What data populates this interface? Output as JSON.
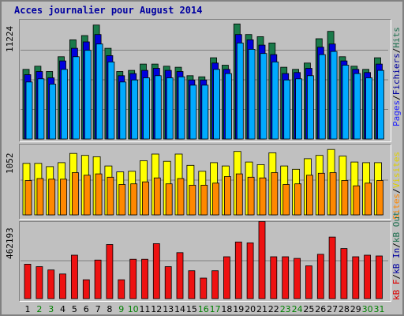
{
  "title": "Acces journalier pour August 2014",
  "colors": {
    "pages": "#00aaff",
    "fichiers": "#0000dd",
    "hits": "#1a7a4a",
    "visites": "#ffff00",
    "sites": "#ff8800",
    "kb": "#ee1111",
    "weekend_label": "#008000",
    "label_blue": "#2020ff",
    "label_dark_blue": "#0000a0",
    "label_green": "#207050",
    "label_yellow": "#e0d000",
    "label_orange": "#ff8800",
    "label_red": "#dd0000"
  },
  "legends": {
    "hits_panel": [
      "Pages",
      "/",
      "Fichiers",
      "/",
      "Hits"
    ],
    "volume_panel": [
      "Sites",
      "/",
      "Visites"
    ],
    "bandwidth_panel": [
      "kB F",
      "/",
      "kB In",
      "/",
      "kB Out"
    ]
  },
  "chart_data": [
    {
      "type": "bar",
      "name": "hits-panel",
      "max_label": "11224",
      "ylim": [
        0,
        11224
      ],
      "categories": [
        "1",
        "2",
        "3",
        "4",
        "5",
        "6",
        "7",
        "8",
        "9",
        "10",
        "11",
        "12",
        "13",
        "14",
        "15",
        "16",
        "17",
        "18",
        "19",
        "20",
        "21",
        "22",
        "23",
        "24",
        "25",
        "26",
        "27",
        "28",
        "29",
        "30",
        "31"
      ],
      "series": [
        {
          "name": "Hits",
          "values": [
            6600,
            6900,
            6400,
            7800,
            9400,
            9800,
            10800,
            8600,
            6400,
            6500,
            7100,
            7100,
            6900,
            6800,
            6000,
            5900,
            7700,
            7000,
            10900,
            9900,
            9700,
            9100,
            6800,
            6600,
            7200,
            9500,
            10200,
            7800,
            6900,
            6600,
            7700
          ]
        },
        {
          "name": "Fichiers",
          "values": [
            6100,
            6400,
            5800,
            7400,
            8600,
            9200,
            9900,
            7900,
            6000,
            6200,
            6500,
            6700,
            6500,
            6400,
            5600,
            5600,
            7200,
            6600,
            9900,
            9400,
            8900,
            8000,
            6200,
            6300,
            6700,
            8700,
            9000,
            7400,
            6600,
            6300,
            7100
          ]
        },
        {
          "name": "Pages",
          "values": [
            5400,
            5700,
            5200,
            6600,
            7800,
            8400,
            9000,
            7300,
            5400,
            5600,
            5800,
            6000,
            5800,
            5900,
            5100,
            5100,
            6600,
            6200,
            9100,
            8500,
            8100,
            7300,
            5600,
            5700,
            6000,
            8000,
            8300,
            7000,
            6200,
            5800,
            6500
          ]
        }
      ]
    },
    {
      "type": "bar",
      "name": "volume-panel",
      "max_label": "1052",
      "ylim": [
        0,
        1052
      ],
      "categories": [
        "1",
        "2",
        "3",
        "4",
        "5",
        "6",
        "7",
        "8",
        "9",
        "10",
        "11",
        "12",
        "13",
        "14",
        "15",
        "16",
        "17",
        "18",
        "19",
        "20",
        "21",
        "22",
        "23",
        "24",
        "25",
        "26",
        "27",
        "28",
        "29",
        "30",
        "31"
      ],
      "series": [
        {
          "name": "Visites",
          "values": [
            780,
            780,
            730,
            790,
            930,
            900,
            880,
            740,
            650,
            660,
            820,
            920,
            810,
            920,
            750,
            660,
            790,
            740,
            960,
            800,
            760,
            940,
            740,
            690,
            850,
            900,
            990,
            890,
            800,
            790,
            790
          ]
        },
        {
          "name": "Sites",
          "values": [
            520,
            550,
            540,
            540,
            640,
            600,
            620,
            570,
            460,
            470,
            500,
            560,
            470,
            550,
            450,
            450,
            480,
            580,
            620,
            570,
            560,
            640,
            460,
            470,
            600,
            630,
            640,
            520,
            440,
            480,
            520
          ]
        }
      ]
    },
    {
      "type": "bar",
      "name": "bandwidth-panel",
      "max_label": "462193",
      "ylim": [
        0,
        462193
      ],
      "categories": [
        "1",
        "2",
        "3",
        "4",
        "5",
        "6",
        "7",
        "8",
        "9",
        "10",
        "11",
        "12",
        "13",
        "14",
        "15",
        "16",
        "17",
        "18",
        "19",
        "20",
        "21",
        "22",
        "23",
        "24",
        "25",
        "26",
        "27",
        "28",
        "29",
        "30",
        "31"
      ],
      "series": [
        {
          "name": "kB F",
          "values": [
            210000,
            195000,
            175000,
            150000,
            265000,
            115000,
            235000,
            330000,
            115000,
            240000,
            240000,
            335000,
            195000,
            280000,
            170000,
            125000,
            170000,
            255000,
            345000,
            340000,
            470000,
            255000,
            255000,
            245000,
            200000,
            270000,
            375000,
            305000,
            255000,
            265000,
            260000
          ]
        }
      ]
    }
  ]
}
